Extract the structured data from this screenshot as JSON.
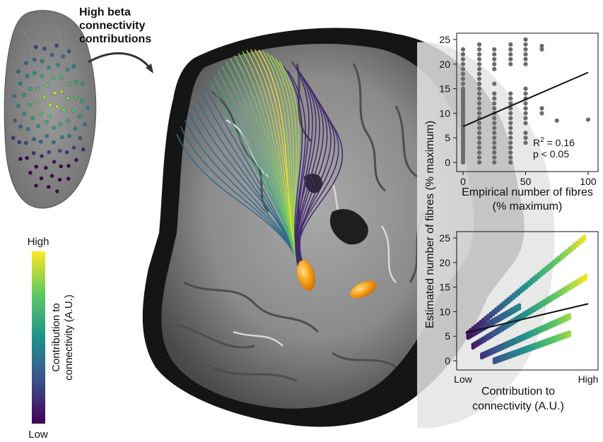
{
  "header": {
    "title_lines": [
      "High beta",
      "connectivity",
      "contributions"
    ]
  },
  "colorbar": {
    "high_label": "High",
    "low_label": "Low",
    "title_lines": [
      "Contribution to",
      "connectivity (A.U.)"
    ],
    "colors": [
      "#fde725",
      "#5ec962",
      "#21918c",
      "#3b528b",
      "#440154"
    ]
  },
  "shared_ylabel": "Estimated number of fibres (% maximum)",
  "chart_data": [
    {
      "type": "scatter",
      "xlabel_lines": [
        "Empirical number of fibres",
        "(% maximum)"
      ],
      "xlim": [
        0,
        100
      ],
      "ylim": [
        0,
        25
      ],
      "x_ticks": [
        0,
        50,
        100
      ],
      "y_ticks": [
        0,
        5,
        10,
        15,
        20,
        25
      ],
      "annotation": {
        "r2_prefix": "R",
        "r2_sup": "2",
        "r2_value": " = 0.16",
        "p_text": "p < 0.05"
      },
      "fit_line": {
        "x": [
          0,
          100
        ],
        "y": [
          7.3,
          18.3
        ]
      },
      "point_color": "#6b6b6b",
      "columns": [
        {
          "x": 0,
          "y": [
            0,
            0.5,
            1,
            1.5,
            2,
            2.5,
            3,
            3.5,
            4,
            4.5,
            5,
            5.5,
            6,
            6.5,
            7,
            7.5,
            8,
            8.5,
            9,
            9.5,
            10,
            10.5,
            11,
            11.5,
            12,
            12.5,
            13,
            13.5,
            14,
            14.5,
            15,
            16,
            17,
            18,
            19,
            20,
            21,
            22,
            23
          ]
        },
        {
          "x": 13,
          "y": [
            0,
            1,
            2,
            3,
            4,
            5,
            6,
            7,
            8,
            9,
            10,
            11,
            12,
            13,
            14,
            15,
            16,
            17,
            18,
            19,
            20,
            21,
            22,
            23,
            24
          ]
        },
        {
          "x": 25,
          "y": [
            0,
            1,
            2,
            3,
            4,
            5,
            6,
            7,
            8,
            9,
            10,
            11,
            12,
            13,
            14,
            16,
            19,
            20,
            21,
            22,
            23
          ]
        },
        {
          "x": 38,
          "y": [
            0,
            1,
            2,
            3,
            4,
            5,
            6,
            7,
            8,
            9,
            10,
            11,
            12,
            13,
            14,
            20,
            21,
            22,
            23,
            24
          ]
        },
        {
          "x": 50,
          "y": [
            4,
            5,
            6,
            8,
            9,
            10,
            11,
            12,
            13,
            14,
            15,
            20,
            21,
            22,
            23,
            24,
            25
          ]
        },
        {
          "x": 63,
          "y": [
            10,
            11,
            23,
            23.7
          ]
        },
        {
          "x": 75,
          "y": [
            8.5
          ]
        },
        {
          "x": 100,
          "y": [
            8.7
          ]
        }
      ]
    },
    {
      "type": "scatter",
      "xlabel_lines": [
        "Contribution to",
        "connectivity (A.U.)"
      ],
      "x_tick_labels": [
        "Low",
        "High"
      ],
      "xlim": [
        0,
        1
      ],
      "ylim": [
        0,
        25
      ],
      "y_ticks": [
        0,
        5,
        10,
        15,
        20,
        25
      ],
      "fit_line": {
        "x": [
          0.02,
          1.0
        ],
        "y": [
          5.7,
          11.6
        ]
      },
      "bands": [
        {
          "x0": 0.04,
          "x1": 0.97,
          "y0": 5.5,
          "y1": 25.0
        },
        {
          "x0": 0.08,
          "x1": 0.98,
          "y0": 3.0,
          "y1": 17.0
        },
        {
          "x0": 0.15,
          "x1": 0.85,
          "y0": 1.0,
          "y1": 9.0
        },
        {
          "x0": 0.25,
          "x1": 0.85,
          "y0": 0.0,
          "y1": 5.5
        },
        {
          "x0": 0.04,
          "x1": 0.45,
          "y0": 5.0,
          "y1": 11.0
        }
      ]
    }
  ]
}
